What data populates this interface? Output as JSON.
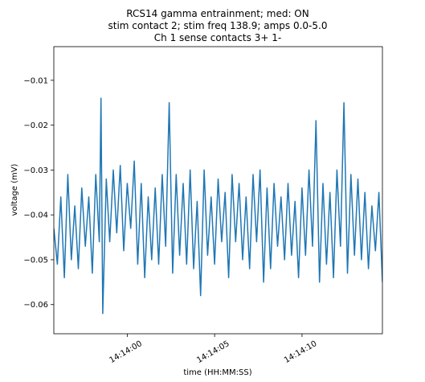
{
  "chart_data": {
    "type": "line",
    "title_lines": [
      "RCS14 gamma entrainment; med: ON",
      "stim contact 2; stim freq 138.9; amps 0.0-5.0",
      "Ch 1 sense contacts 3+ 1-"
    ],
    "xlabel": "time (HH:MM:SS)",
    "ylabel": "voltage (mV)",
    "xlim": [
      "14:13:55.8",
      "14:14:14.6"
    ],
    "ylim": [
      -0.0665,
      -0.0025
    ],
    "x_ticks": [
      {
        "t": "14:14:00",
        "label": "14:14:00"
      },
      {
        "t": "14:14:05",
        "label": "14:14:05"
      },
      {
        "t": "14:14:10",
        "label": "14:14:10"
      }
    ],
    "y_ticks": [
      {
        "v": -0.01,
        "label": "−0.01"
      },
      {
        "v": -0.02,
        "label": "−0.02"
      },
      {
        "v": -0.03,
        "label": "−0.03"
      },
      {
        "v": -0.04,
        "label": "−0.04"
      },
      {
        "v": -0.05,
        "label": "−0.05"
      },
      {
        "v": -0.06,
        "label": "−0.06"
      }
    ],
    "grid": false,
    "legend": "none",
    "series": [
      {
        "color": "#1f77b4",
        "points": [
          [
            "14:13:55.8",
            -0.043
          ],
          [
            "14:13:56.0",
            -0.051
          ],
          [
            "14:13:56.2",
            -0.036
          ],
          [
            "14:13:56.4",
            -0.054
          ],
          [
            "14:13:56.6",
            -0.031
          ],
          [
            "14:13:56.8",
            -0.05
          ],
          [
            "14:13:57.0",
            -0.038
          ],
          [
            "14:13:57.2",
            -0.052
          ],
          [
            "14:13:57.4",
            -0.034
          ],
          [
            "14:13:57.6",
            -0.047
          ],
          [
            "14:13:57.8",
            -0.036
          ],
          [
            "14:13:58.0",
            -0.053
          ],
          [
            "14:13:58.2",
            -0.031
          ],
          [
            "14:13:58.4",
            -0.046
          ],
          [
            "14:13:58.5",
            -0.014
          ],
          [
            "14:13:58.6",
            -0.062
          ],
          [
            "14:13:58.8",
            -0.032
          ],
          [
            "14:13:59.0",
            -0.046
          ],
          [
            "14:13:59.2",
            -0.03
          ],
          [
            "14:13:59.4",
            -0.044
          ],
          [
            "14:13:59.6",
            -0.029
          ],
          [
            "14:13:59.8",
            -0.048
          ],
          [
            "14:14:00.0",
            -0.033
          ],
          [
            "14:14:00.2",
            -0.043
          ],
          [
            "14:14:00.4",
            -0.028
          ],
          [
            "14:14:00.6",
            -0.051
          ],
          [
            "14:14:00.8",
            -0.033
          ],
          [
            "14:14:01.0",
            -0.054
          ],
          [
            "14:14:01.2",
            -0.036
          ],
          [
            "14:14:01.4",
            -0.05
          ],
          [
            "14:14:01.6",
            -0.034
          ],
          [
            "14:14:01.8",
            -0.051
          ],
          [
            "14:14:02.0",
            -0.031
          ],
          [
            "14:14:02.2",
            -0.047
          ],
          [
            "14:14:02.4",
            -0.015
          ],
          [
            "14:14:02.6",
            -0.053
          ],
          [
            "14:14:02.8",
            -0.031
          ],
          [
            "14:14:03.0",
            -0.049
          ],
          [
            "14:14:03.2",
            -0.033
          ],
          [
            "14:14:03.4",
            -0.051
          ],
          [
            "14:14:03.6",
            -0.03
          ],
          [
            "14:14:03.8",
            -0.052
          ],
          [
            "14:14:04.0",
            -0.037
          ],
          [
            "14:14:04.2",
            -0.058
          ],
          [
            "14:14:04.4",
            -0.03
          ],
          [
            "14:14:04.6",
            -0.049
          ],
          [
            "14:14:04.8",
            -0.036
          ],
          [
            "14:14:05.0",
            -0.051
          ],
          [
            "14:14:05.2",
            -0.032
          ],
          [
            "14:14:05.4",
            -0.046
          ],
          [
            "14:14:05.6",
            -0.035
          ],
          [
            "14:14:05.8",
            -0.054
          ],
          [
            "14:14:06.0",
            -0.031
          ],
          [
            "14:14:06.2",
            -0.046
          ],
          [
            "14:14:06.4",
            -0.033
          ],
          [
            "14:14:06.6",
            -0.05
          ],
          [
            "14:14:06.8",
            -0.036
          ],
          [
            "14:14:07.0",
            -0.052
          ],
          [
            "14:14:07.2",
            -0.031
          ],
          [
            "14:14:07.4",
            -0.046
          ],
          [
            "14:14:07.6",
            -0.03
          ],
          [
            "14:14:07.8",
            -0.055
          ],
          [
            "14:14:08.0",
            -0.034
          ],
          [
            "14:14:08.2",
            -0.052
          ],
          [
            "14:14:08.4",
            -0.033
          ],
          [
            "14:14:08.6",
            -0.047
          ],
          [
            "14:14:08.8",
            -0.036
          ],
          [
            "14:14:09.0",
            -0.05
          ],
          [
            "14:14:09.2",
            -0.033
          ],
          [
            "14:14:09.4",
            -0.049
          ],
          [
            "14:14:09.6",
            -0.037
          ],
          [
            "14:14:09.8",
            -0.054
          ],
          [
            "14:14:10.0",
            -0.034
          ],
          [
            "14:14:10.2",
            -0.049
          ],
          [
            "14:14:10.4",
            -0.03
          ],
          [
            "14:14:10.6",
            -0.047
          ],
          [
            "14:14:10.8",
            -0.019
          ],
          [
            "14:14:11.0",
            -0.055
          ],
          [
            "14:14:11.2",
            -0.033
          ],
          [
            "14:14:11.4",
            -0.051
          ],
          [
            "14:14:11.6",
            -0.035
          ],
          [
            "14:14:11.8",
            -0.054
          ],
          [
            "14:14:12.0",
            -0.03
          ],
          [
            "14:14:12.2",
            -0.047
          ],
          [
            "14:14:12.4",
            -0.015
          ],
          [
            "14:14:12.6",
            -0.053
          ],
          [
            "14:14:12.8",
            -0.031
          ],
          [
            "14:14:13.0",
            -0.049
          ],
          [
            "14:14:13.2",
            -0.032
          ],
          [
            "14:14:13.4",
            -0.05
          ],
          [
            "14:14:13.6",
            -0.035
          ],
          [
            "14:14:13.8",
            -0.052
          ],
          [
            "14:14:14.0",
            -0.038
          ],
          [
            "14:14:14.2",
            -0.048
          ],
          [
            "14:14:14.4",
            -0.035
          ],
          [
            "14:14:14.6",
            -0.055
          ]
        ]
      }
    ]
  }
}
